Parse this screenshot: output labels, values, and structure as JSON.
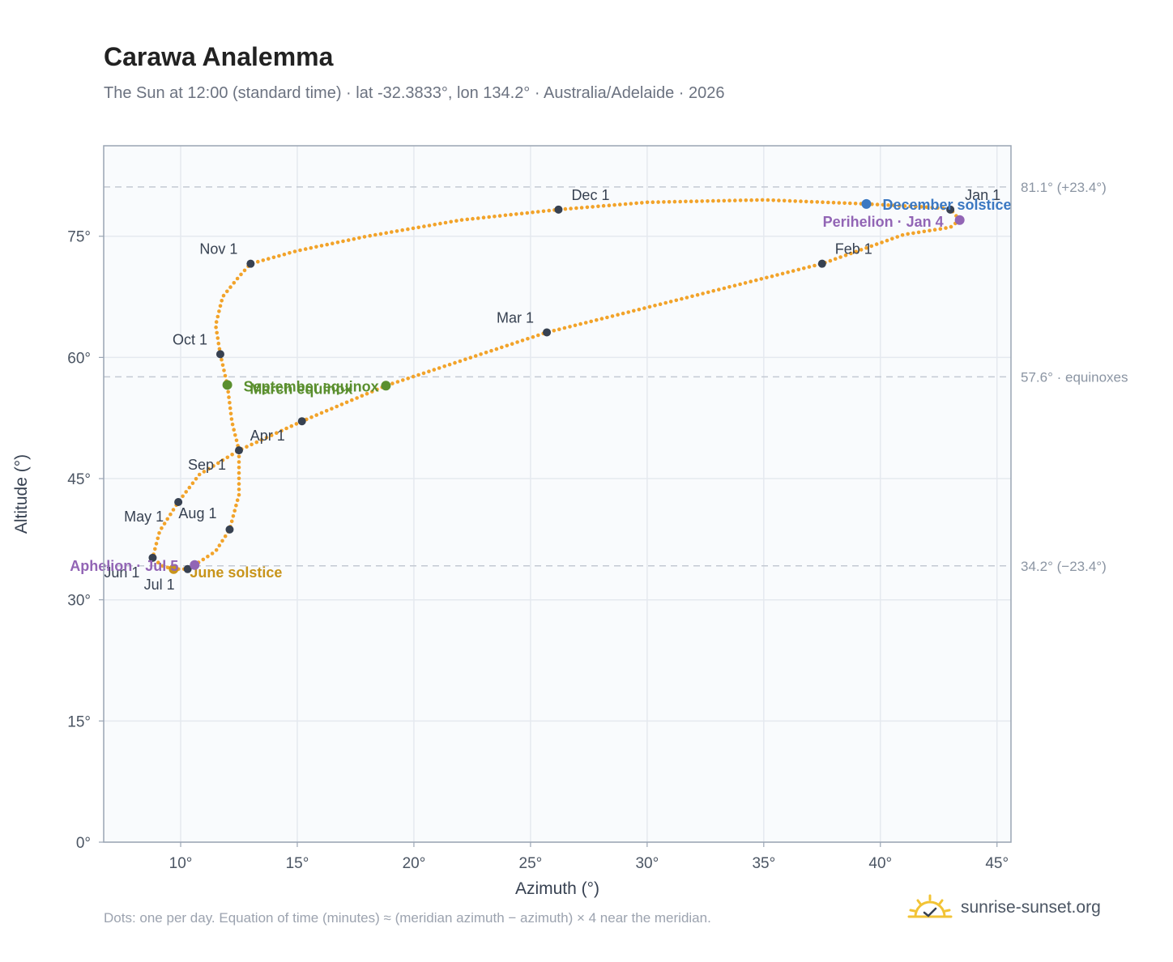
{
  "header": {
    "title": "Carawa Analemma",
    "subtitle": "The Sun at 12:00 (standard time) · lat -32.3833°, lon 134.2° · Australia/Adelaide · 2026"
  },
  "footer": {
    "note": "Dots: one per day. Equation of time (minutes) ≈ (meridian azimuth − azimuth) × 4 near the meridian.",
    "brand": "sunrise-sunset.org",
    "brand_icon": "sun-check-icon"
  },
  "colors": {
    "curve": "#f2a32a",
    "month_marker": "#374151",
    "equinox": "#5a8f2e",
    "june_solstice": "#c8941a",
    "december_solstice": "#3b78c2",
    "apsis": "#9265b5",
    "reference_line": "#c4cad3",
    "grid": "#e5e9ef",
    "plot_bg": "#f9fbfd",
    "frame": "#9aa5b4"
  },
  "chart_data": {
    "type": "scatter",
    "xlabel": "Azimuth (°)",
    "ylabel": "Altitude (°)",
    "xlim": [
      6.7,
      45.6
    ],
    "ylim": [
      0,
      86.2
    ],
    "x_ticks": [
      10,
      15,
      20,
      25,
      30,
      35,
      40,
      45
    ],
    "y_ticks": [
      0,
      15,
      30,
      45,
      60,
      75
    ],
    "tick_suffix": "°",
    "grid": true,
    "reference_lines": [
      {
        "value": 81.1,
        "label": "81.1° (+23.4°)"
      },
      {
        "value": 57.6,
        "label": "57.6° · equinoxes"
      },
      {
        "value": 34.2,
        "label": "34.2° (−23.4°)"
      }
    ],
    "analemma_path": [
      [
        43.4,
        77.0
      ],
      [
        43.0,
        76.1
      ],
      [
        41.0,
        75.2
      ],
      [
        37.5,
        71.6
      ],
      [
        31.0,
        66.9
      ],
      [
        25.7,
        63.1
      ],
      [
        18.8,
        56.5
      ],
      [
        15.2,
        52.1
      ],
      [
        12.5,
        48.5
      ],
      [
        10.8,
        45.5
      ],
      [
        9.9,
        42.1
      ],
      [
        9.1,
        38.5
      ],
      [
        8.8,
        35.2
      ],
      [
        9.2,
        34.2
      ],
      [
        9.7,
        33.8
      ],
      [
        10.3,
        33.8
      ],
      [
        10.6,
        34.3
      ],
      [
        11.5,
        36.0
      ],
      [
        12.1,
        38.7
      ],
      [
        12.5,
        43.0
      ],
      [
        12.5,
        48.5
      ],
      [
        12.2,
        52.0
      ],
      [
        12.0,
        56.6
      ],
      [
        11.7,
        60.4
      ],
      [
        11.5,
        64.0
      ],
      [
        11.8,
        67.5
      ],
      [
        12.5,
        70.0
      ],
      [
        13.0,
        71.6
      ],
      [
        15.0,
        73.2
      ],
      [
        18.0,
        75.0
      ],
      [
        22.0,
        77.0
      ],
      [
        26.2,
        78.3
      ],
      [
        30.0,
        79.2
      ],
      [
        35.0,
        79.5
      ],
      [
        39.4,
        79.0
      ],
      [
        42.0,
        78.6
      ],
      [
        43.0,
        78.4
      ],
      [
        43.4,
        77.0
      ]
    ],
    "month_markers": [
      {
        "label": "Jan 1",
        "az": 43.0,
        "alt": 78.3
      },
      {
        "label": "Feb 1",
        "az": 37.5,
        "alt": 71.6
      },
      {
        "label": "Mar 1",
        "az": 25.7,
        "alt": 63.1
      },
      {
        "label": "Apr 1",
        "az": 15.2,
        "alt": 52.1
      },
      {
        "label": "May 1",
        "az": 9.9,
        "alt": 42.1
      },
      {
        "label": "Jun 1",
        "az": 8.8,
        "alt": 35.2
      },
      {
        "label": "Jul 1",
        "az": 10.3,
        "alt": 33.8
      },
      {
        "label": "Aug 1",
        "az": 12.1,
        "alt": 38.7
      },
      {
        "label": "Sep 1",
        "az": 12.5,
        "alt": 48.5
      },
      {
        "label": "Oct 1",
        "az": 11.7,
        "alt": 60.4
      },
      {
        "label": "Nov 1",
        "az": 13.0,
        "alt": 71.6
      },
      {
        "label": "Dec 1",
        "az": 26.2,
        "alt": 78.3
      }
    ],
    "events": [
      {
        "label": "March equinox",
        "az": 18.8,
        "alt": 56.5,
        "color_key": "equinox"
      },
      {
        "label": "September equinox",
        "az": 12.0,
        "alt": 56.6,
        "color_key": "equinox"
      },
      {
        "label": "June solstice",
        "az": 9.7,
        "alt": 33.8,
        "color_key": "june_solstice"
      },
      {
        "label": "December solstice",
        "az": 39.4,
        "alt": 79.0,
        "color_key": "december_solstice"
      },
      {
        "label": "Perihelion · Jan 4",
        "az": 43.4,
        "alt": 77.0,
        "color_key": "apsis"
      },
      {
        "label": "Aphelion · Jul 5",
        "az": 10.6,
        "alt": 34.3,
        "color_key": "apsis"
      }
    ]
  }
}
